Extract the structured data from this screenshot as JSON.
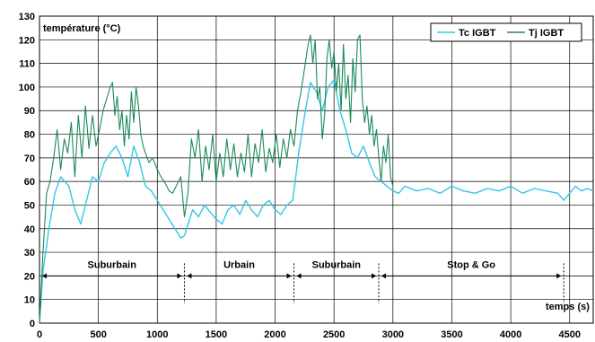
{
  "chart_data": {
    "type": "line",
    "ylabel": "température (°C)",
    "xlabel": "temps (s)",
    "xlim": [
      0,
      4700
    ],
    "ylim": [
      0,
      130
    ],
    "x_ticks": [
      0,
      500,
      1000,
      1500,
      2000,
      2500,
      3000,
      3500,
      4000,
      4500
    ],
    "y_ticks": [
      0,
      10,
      20,
      30,
      40,
      50,
      60,
      70,
      80,
      90,
      100,
      110,
      120,
      130
    ],
    "grid": true,
    "legend_position": "top-right",
    "series": [
      {
        "name": "Tc IGBT",
        "color": "#33c6e8",
        "points": [
          [
            0,
            0
          ],
          [
            30,
            22
          ],
          [
            80,
            40
          ],
          [
            130,
            55
          ],
          [
            180,
            62
          ],
          [
            250,
            58
          ],
          [
            300,
            48
          ],
          [
            350,
            42
          ],
          [
            400,
            52
          ],
          [
            450,
            62
          ],
          [
            500,
            60
          ],
          [
            550,
            68
          ],
          [
            600,
            72
          ],
          [
            650,
            75
          ],
          [
            700,
            70
          ],
          [
            750,
            62
          ],
          [
            800,
            75
          ],
          [
            850,
            68
          ],
          [
            900,
            58
          ],
          [
            950,
            56
          ],
          [
            1000,
            52
          ],
          [
            1050,
            48
          ],
          [
            1100,
            44
          ],
          [
            1150,
            40
          ],
          [
            1200,
            36
          ],
          [
            1230,
            37
          ],
          [
            1300,
            48
          ],
          [
            1350,
            45
          ],
          [
            1400,
            50
          ],
          [
            1450,
            47
          ],
          [
            1500,
            44
          ],
          [
            1550,
            42
          ],
          [
            1600,
            48
          ],
          [
            1650,
            50
          ],
          [
            1700,
            46
          ],
          [
            1750,
            52
          ],
          [
            1800,
            48
          ],
          [
            1850,
            45
          ],
          [
            1900,
            50
          ],
          [
            1950,
            52
          ],
          [
            2000,
            48
          ],
          [
            2050,
            46
          ],
          [
            2100,
            50
          ],
          [
            2150,
            52
          ],
          [
            2170,
            60
          ],
          [
            2200,
            72
          ],
          [
            2250,
            88
          ],
          [
            2300,
            102
          ],
          [
            2350,
            98
          ],
          [
            2400,
            90
          ],
          [
            2450,
            100
          ],
          [
            2500,
            103
          ],
          [
            2550,
            90
          ],
          [
            2600,
            82
          ],
          [
            2650,
            72
          ],
          [
            2700,
            70
          ],
          [
            2750,
            75
          ],
          [
            2800,
            68
          ],
          [
            2850,
            62
          ],
          [
            2900,
            60
          ],
          [
            2950,
            58
          ],
          [
            3000,
            56
          ],
          [
            3050,
            55
          ],
          [
            3100,
            58
          ],
          [
            3200,
            56
          ],
          [
            3300,
            57
          ],
          [
            3400,
            55
          ],
          [
            3500,
            58
          ],
          [
            3600,
            56
          ],
          [
            3700,
            55
          ],
          [
            3800,
            57
          ],
          [
            3900,
            56
          ],
          [
            4000,
            58
          ],
          [
            4100,
            55
          ],
          [
            4200,
            57
          ],
          [
            4300,
            56
          ],
          [
            4400,
            55
          ],
          [
            4450,
            52
          ],
          [
            4500,
            55
          ],
          [
            4550,
            58
          ],
          [
            4600,
            56
          ],
          [
            4650,
            57
          ],
          [
            4700,
            56
          ]
        ]
      },
      {
        "name": "Tj IGBT",
        "color": "#1a8a5a",
        "points": [
          [
            0,
            0
          ],
          [
            30,
            30
          ],
          [
            60,
            55
          ],
          [
            90,
            60
          ],
          [
            120,
            70
          ],
          [
            150,
            82
          ],
          [
            180,
            65
          ],
          [
            210,
            78
          ],
          [
            240,
            72
          ],
          [
            270,
            85
          ],
          [
            300,
            62
          ],
          [
            330,
            88
          ],
          [
            360,
            70
          ],
          [
            390,
            92
          ],
          [
            420,
            74
          ],
          [
            450,
            88
          ],
          [
            480,
            75
          ],
          [
            510,
            82
          ],
          [
            540,
            90
          ],
          [
            570,
            95
          ],
          [
            600,
            100
          ],
          [
            620,
            102
          ],
          [
            640,
            88
          ],
          [
            660,
            96
          ],
          [
            680,
            82
          ],
          [
            700,
            90
          ],
          [
            720,
            75
          ],
          [
            740,
            88
          ],
          [
            760,
            78
          ],
          [
            780,
            98
          ],
          [
            800,
            85
          ],
          [
            820,
            100
          ],
          [
            840,
            92
          ],
          [
            860,
            80
          ],
          [
            880,
            75
          ],
          [
            900,
            72
          ],
          [
            930,
            68
          ],
          [
            960,
            70
          ],
          [
            1000,
            65
          ],
          [
            1030,
            62
          ],
          [
            1060,
            60
          ],
          [
            1100,
            56
          ],
          [
            1130,
            55
          ],
          [
            1160,
            58
          ],
          [
            1200,
            62
          ],
          [
            1230,
            45
          ],
          [
            1260,
            55
          ],
          [
            1290,
            78
          ],
          [
            1320,
            70
          ],
          [
            1350,
            82
          ],
          [
            1380,
            60
          ],
          [
            1410,
            75
          ],
          [
            1440,
            65
          ],
          [
            1470,
            80
          ],
          [
            1500,
            60
          ],
          [
            1530,
            72
          ],
          [
            1560,
            62
          ],
          [
            1590,
            78
          ],
          [
            1620,
            65
          ],
          [
            1650,
            76
          ],
          [
            1680,
            62
          ],
          [
            1710,
            72
          ],
          [
            1740,
            64
          ],
          [
            1770,
            80
          ],
          [
            1800,
            62
          ],
          [
            1830,
            76
          ],
          [
            1860,
            68
          ],
          [
            1890,
            82
          ],
          [
            1920,
            64
          ],
          [
            1950,
            74
          ],
          [
            1980,
            68
          ],
          [
            2010,
            80
          ],
          [
            2040,
            66
          ],
          [
            2070,
            78
          ],
          [
            2100,
            70
          ],
          [
            2130,
            82
          ],
          [
            2160,
            75
          ],
          [
            2190,
            90
          ],
          [
            2220,
            98
          ],
          [
            2250,
            108
          ],
          [
            2280,
            118
          ],
          [
            2300,
            122
          ],
          [
            2320,
            110
          ],
          [
            2340,
            120
          ],
          [
            2360,
            95
          ],
          [
            2380,
            100
          ],
          [
            2400,
            78
          ],
          [
            2420,
            88
          ],
          [
            2440,
            112
          ],
          [
            2460,
            120
          ],
          [
            2480,
            108
          ],
          [
            2500,
            115
          ],
          [
            2520,
            98
          ],
          [
            2540,
            110
          ],
          [
            2560,
            90
          ],
          [
            2580,
            118
          ],
          [
            2600,
            95
          ],
          [
            2620,
            105
          ],
          [
            2640,
            85
          ],
          [
            2660,
            112
          ],
          [
            2680,
            98
          ],
          [
            2700,
            120
          ],
          [
            2720,
            122
          ],
          [
            2740,
            95
          ],
          [
            2760,
            85
          ],
          [
            2780,
            92
          ],
          [
            2800,
            80
          ],
          [
            2820,
            88
          ],
          [
            2840,
            75
          ],
          [
            2860,
            82
          ],
          [
            2880,
            70
          ],
          [
            2900,
            60
          ],
          [
            2920,
            75
          ],
          [
            2940,
            68
          ],
          [
            2960,
            80
          ],
          [
            2980,
            62
          ],
          [
            3000,
            58
          ]
        ]
      }
    ],
    "annotations": [
      {
        "label": "Suburbain",
        "from": 0,
        "to": 1230
      },
      {
        "label": "Urbain",
        "from": 1230,
        "to": 2160
      },
      {
        "label": "Suburbain",
        "from": 2160,
        "to": 2880
      },
      {
        "label": "Stop & Go",
        "from": 2880,
        "to": 4450
      }
    ],
    "annotation_y": 20,
    "divider_x": [
      1230,
      2160,
      2880,
      4450
    ]
  }
}
